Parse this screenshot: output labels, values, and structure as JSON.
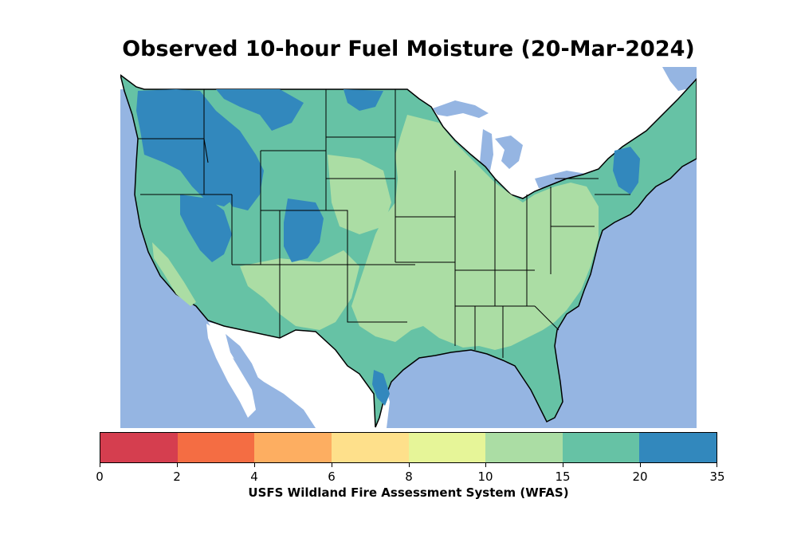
{
  "title": "Observed 10-hour Fuel Moisture (20-Mar-2024)",
  "colors": {
    "ocean": "#95b5e2",
    "land_outside": "#ffffff",
    "border": "#000000"
  },
  "colorbar": {
    "ticks": [
      "0",
      "2",
      "4",
      "6",
      "8",
      "10",
      "15",
      "20",
      "35"
    ],
    "bins": [
      {
        "range": "0-2",
        "color": "#d53e4f"
      },
      {
        "range": "2-4",
        "color": "#f46d43"
      },
      {
        "range": "4-6",
        "color": "#fdae61"
      },
      {
        "range": "6-8",
        "color": "#fee08b"
      },
      {
        "range": "8-10",
        "color": "#e6f598"
      },
      {
        "range": "10-15",
        "color": "#abdda4"
      },
      {
        "range": "15-20",
        "color": "#66c2a5"
      },
      {
        "range": "20-35",
        "color": "#3288bd"
      }
    ],
    "label": "USFS Wildland Fire Assessment System (WFAS)"
  }
}
